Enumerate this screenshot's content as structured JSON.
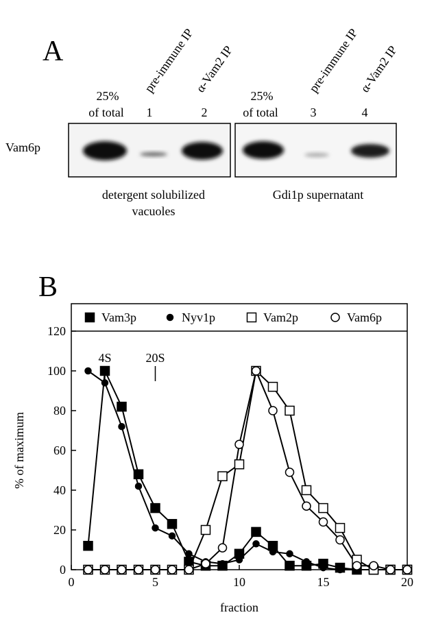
{
  "panel_a": {
    "label": "A",
    "row_label": "Vam6p",
    "blots": [
      {
        "total": [
          "25%",
          "of total"
        ],
        "lanes": [
          {
            "treatment": "pre-immune IP",
            "number": "1"
          },
          {
            "treatment": "α-Vam2 IP",
            "number": "2"
          }
        ],
        "caption": [
          "detergent solubilized",
          "vacuoles"
        ]
      },
      {
        "total": [
          "25%",
          "of total"
        ],
        "lanes": [
          {
            "treatment": "pre-immune IP",
            "number": "3"
          },
          {
            "treatment": "α-Vam2 IP",
            "number": "4"
          }
        ],
        "caption": [
          "Gdi1p supernatant"
        ]
      }
    ]
  },
  "panel_b": {
    "label": "B"
  },
  "chart_data": {
    "type": "line",
    "x_label": "fraction",
    "y_label": "% of maximum",
    "x": [
      1,
      2,
      3,
      4,
      5,
      6,
      7,
      8,
      9,
      10,
      11,
      12,
      13,
      14,
      15,
      16,
      17,
      18,
      19,
      20
    ],
    "series": [
      {
        "name": "Vam3p",
        "color": "#000000",
        "marker": "square",
        "filled": true,
        "values": [
          12,
          100,
          82,
          48,
          31,
          23,
          4,
          2,
          2,
          8,
          19,
          12,
          2,
          2,
          3,
          1,
          0,
          0,
          0,
          0
        ]
      },
      {
        "name": "Nyv1p",
        "color": "#000000",
        "marker": "circle",
        "filled": true,
        "values": [
          100,
          94,
          72,
          42,
          21,
          17,
          8,
          4,
          3,
          5,
          13,
          9,
          8,
          4,
          1,
          0,
          0,
          0,
          0,
          0
        ]
      },
      {
        "name": "Vam2p",
        "color": "#000000",
        "marker": "square",
        "filled": false,
        "values": [
          0,
          0,
          0,
          0,
          0,
          0,
          0,
          20,
          47,
          53,
          100,
          92,
          80,
          40,
          31,
          21,
          5,
          0,
          0,
          0
        ]
      },
      {
        "name": "Vam6p",
        "color": "#000000",
        "marker": "circle",
        "filled": false,
        "values": [
          0,
          0,
          0,
          0,
          0,
          0,
          0,
          3,
          11,
          63,
          100,
          80,
          49,
          32,
          24,
          15,
          2,
          2,
          0,
          0
        ]
      }
    ],
    "annotations": [
      {
        "text": "4S",
        "x": 2
      },
      {
        "text": "20S",
        "x": 5
      }
    ],
    "xlim": [
      0,
      20
    ],
    "xticks": [
      0,
      5,
      10,
      15,
      20
    ],
    "ylim": [
      0,
      120
    ],
    "yticks": [
      0,
      20,
      40,
      60,
      80,
      100,
      120
    ],
    "grid": false,
    "legend": "top"
  }
}
